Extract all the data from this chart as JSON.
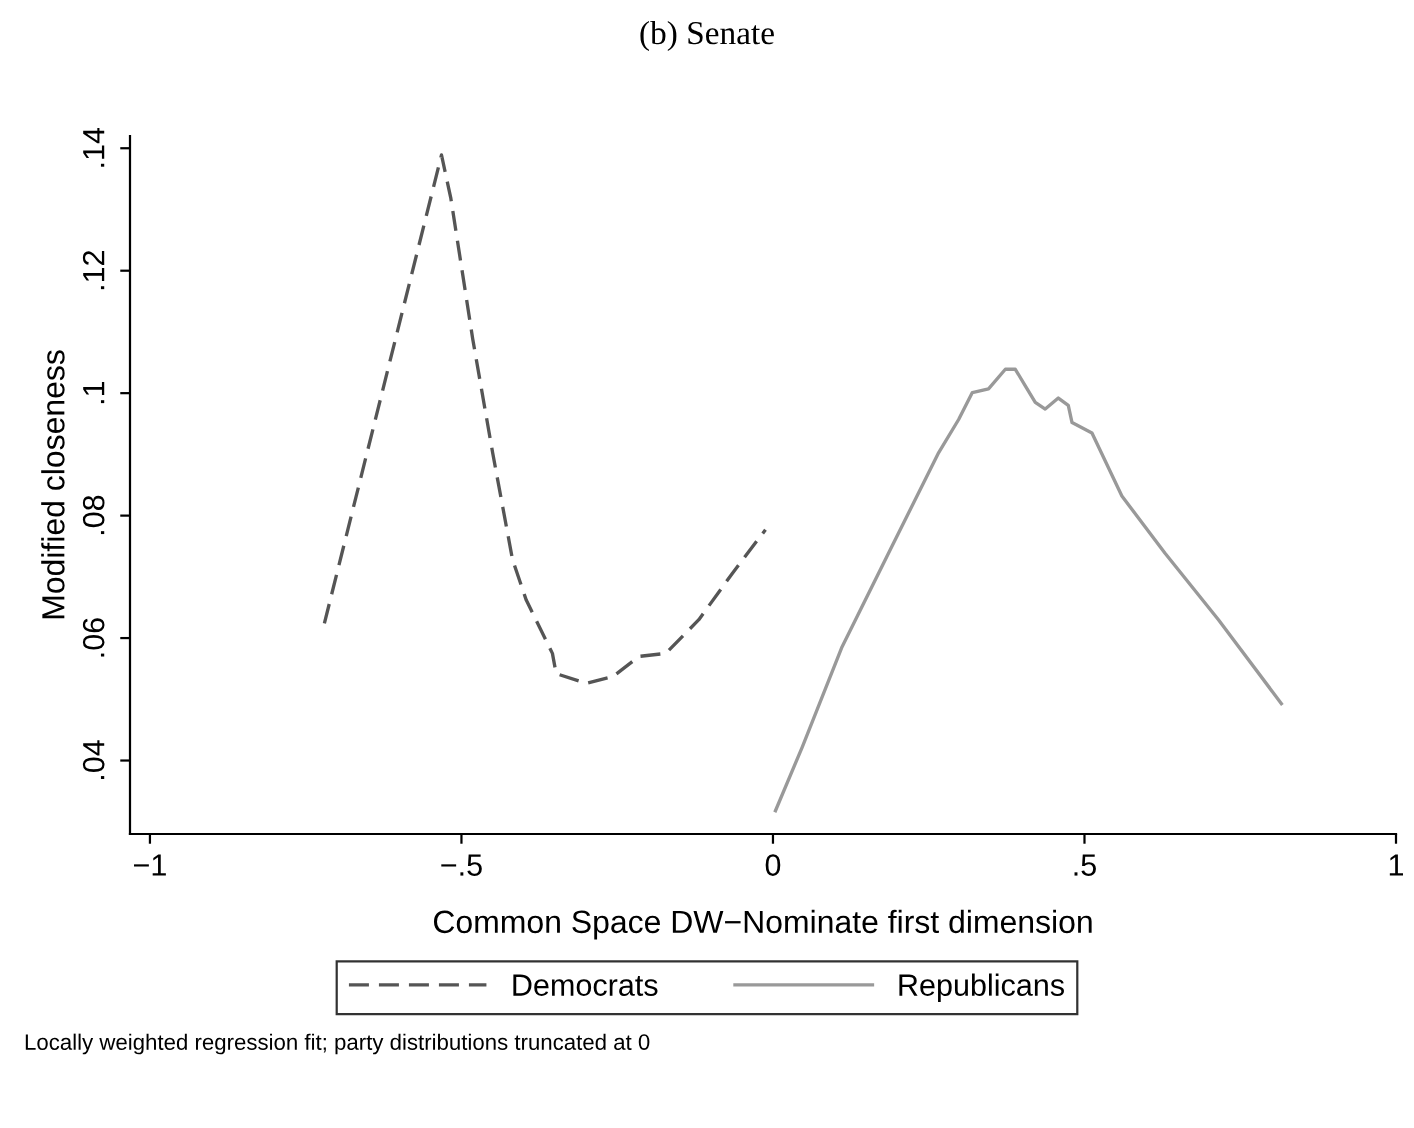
{
  "chart_data": {
    "type": "line",
    "title": "(b) Senate",
    "xlabel": "Common Space DW−Nominate first dimension",
    "ylabel": "Modified closeness",
    "series": [
      {
        "name": "Democrats",
        "color": "#555555",
        "line_style": "dashed",
        "x": [
          -0.72,
          -0.532,
          -0.517,
          -0.482,
          -0.45,
          -0.418,
          -0.396,
          -0.354,
          -0.348,
          -0.3,
          -0.257,
          -0.215,
          -0.172,
          -0.119,
          -0.065,
          -0.012
        ],
        "values": [
          0.0624,
          0.1389,
          0.1318,
          0.1089,
          0.0903,
          0.0728,
          0.0662,
          0.0575,
          0.0542,
          0.0526,
          0.0537,
          0.057,
          0.0575,
          0.063,
          0.0706,
          0.0777
        ]
      },
      {
        "name": "Republicans",
        "color": "#999999",
        "line_style": "solid",
        "x": [
          0.004,
          0.047,
          0.111,
          0.191,
          0.266,
          0.298,
          0.32,
          0.346,
          0.373,
          0.389,
          0.405,
          0.421,
          0.437,
          0.458,
          0.474,
          0.48,
          0.512,
          0.56,
          0.629,
          0.715,
          0.816
        ],
        "values": [
          0.0318,
          0.0422,
          0.0586,
          0.075,
          0.0903,
          0.0957,
          0.1001,
          0.1007,
          0.1039,
          0.1039,
          0.1012,
          0.0985,
          0.0974,
          0.0992,
          0.098,
          0.0952,
          0.0935,
          0.0832,
          0.0739,
          0.063,
          0.0493
        ]
      }
    ],
    "xlim": [
      -1.032,
      1.0
    ],
    "ylim": [
      0.028,
      0.142
    ],
    "xticks": [
      {
        "value": -1,
        "label": "−1"
      },
      {
        "value": -0.5,
        "label": "−.5"
      },
      0,
      {
        "value": 0.5,
        "label": ".5"
      },
      1
    ],
    "yticks": [
      {
        "value": 0.04,
        "label": ".04"
      },
      {
        "value": 0.06,
        "label": ".06"
      },
      {
        "value": 0.08,
        "label": ".08"
      },
      {
        "value": 0.1,
        "label": ".1"
      },
      {
        "value": 0.12,
        "label": ".12"
      },
      {
        "value": 0.14,
        "label": ".14"
      }
    ],
    "legend": "bottom",
    "grid": false,
    "annotations": [
      "Locally weighted regression fit; party distributions truncated at 0"
    ]
  }
}
